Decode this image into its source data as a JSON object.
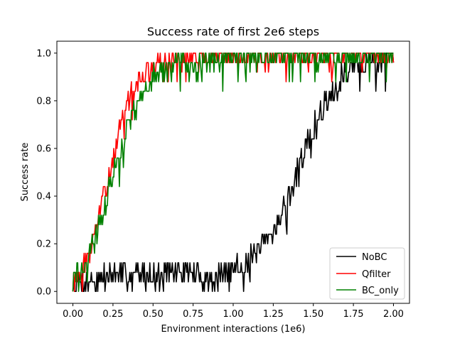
{
  "chart_data": {
    "type": "line",
    "title": "Success rate of first 2e6 steps",
    "xlabel": "Environment interactions (1e6)",
    "ylabel": "Success rate",
    "xlim": [
      -0.1,
      2.1
    ],
    "ylim": [
      -0.05,
      1.05
    ],
    "xticks": [
      "0.00",
      "0.25",
      "0.50",
      "0.75",
      "1.00",
      "1.25",
      "1.50",
      "1.75",
      "2.00"
    ],
    "yticks": [
      "0.0",
      "0.2",
      "0.4",
      "0.6",
      "0.8",
      "1.0"
    ],
    "grid": false,
    "legend_position": "lower-right",
    "x_step": 0.005,
    "series": [
      {
        "name": "NoBC",
        "color": "#000000",
        "anchors": [
          [
            0.0,
            0.04
          ],
          [
            0.1,
            0.04
          ],
          [
            0.2,
            0.06
          ],
          [
            0.3,
            0.07
          ],
          [
            0.5,
            0.08
          ],
          [
            0.7,
            0.08
          ],
          [
            0.85,
            0.06
          ],
          [
            0.95,
            0.07
          ],
          [
            1.0,
            0.09
          ],
          [
            1.1,
            0.13
          ],
          [
            1.2,
            0.2
          ],
          [
            1.25,
            0.26
          ],
          [
            1.3,
            0.32
          ],
          [
            1.35,
            0.4
          ],
          [
            1.4,
            0.5
          ],
          [
            1.45,
            0.6
          ],
          [
            1.5,
            0.68
          ],
          [
            1.55,
            0.75
          ],
          [
            1.6,
            0.82
          ],
          [
            1.65,
            0.87
          ],
          [
            1.7,
            0.92
          ],
          [
            1.75,
            0.94
          ],
          [
            1.8,
            0.95
          ],
          [
            1.9,
            0.96
          ],
          [
            2.0,
            0.98
          ]
        ],
        "noise": 0.05,
        "seed": 7
      },
      {
        "name": "Qfilter",
        "color": "#ff0000",
        "anchors": [
          [
            0.0,
            0.04
          ],
          [
            0.05,
            0.07
          ],
          [
            0.1,
            0.16
          ],
          [
            0.15,
            0.28
          ],
          [
            0.2,
            0.42
          ],
          [
            0.25,
            0.55
          ],
          [
            0.3,
            0.7
          ],
          [
            0.35,
            0.8
          ],
          [
            0.4,
            0.87
          ],
          [
            0.45,
            0.91
          ],
          [
            0.5,
            0.94
          ],
          [
            0.55,
            0.96
          ],
          [
            0.6,
            0.97
          ],
          [
            0.8,
            0.98
          ],
          [
            1.0,
            0.985
          ],
          [
            1.5,
            0.99
          ],
          [
            2.0,
            0.99
          ]
        ],
        "noise": 0.04,
        "seed": 13
      },
      {
        "name": "BC_only",
        "color": "#008000",
        "anchors": [
          [
            0.0,
            0.04
          ],
          [
            0.05,
            0.09
          ],
          [
            0.1,
            0.15
          ],
          [
            0.15,
            0.25
          ],
          [
            0.2,
            0.36
          ],
          [
            0.25,
            0.48
          ],
          [
            0.3,
            0.6
          ],
          [
            0.35,
            0.7
          ],
          [
            0.4,
            0.78
          ],
          [
            0.45,
            0.85
          ],
          [
            0.5,
            0.9
          ],
          [
            0.55,
            0.92
          ],
          [
            0.6,
            0.94
          ],
          [
            0.7,
            0.96
          ],
          [
            0.8,
            0.97
          ],
          [
            1.0,
            0.98
          ],
          [
            1.5,
            0.99
          ],
          [
            2.0,
            0.99
          ]
        ],
        "noise": 0.045,
        "seed": 29
      }
    ]
  }
}
